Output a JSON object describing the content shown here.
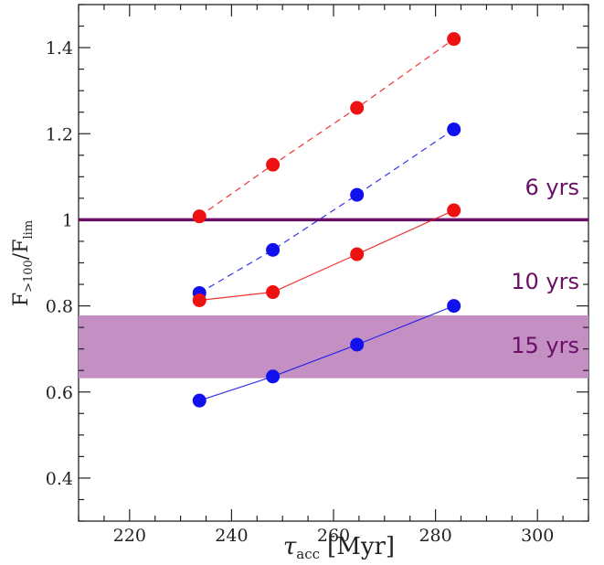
{
  "chart_data": {
    "type": "scatter",
    "xlabel": {
      "symbol": "τ",
      "sub": "acc",
      "unit": "[Myr]"
    },
    "ylabel": {
      "num": "F",
      "num_sub": ">100",
      "den": "F",
      "den_sub": "lim"
    },
    "xlim": [
      210,
      310
    ],
    "ylim": [
      0.3,
      1.5
    ],
    "x_ticks": [
      220,
      240,
      260,
      280,
      300
    ],
    "y_ticks": [
      0.4,
      0.6,
      0.8,
      1,
      1.2,
      1.4
    ],
    "x_tick_labels": [
      "220",
      "240",
      "260",
      "280",
      "300"
    ],
    "y_tick_labels": [
      "0.4",
      "0.6",
      "0.8",
      "1",
      "1.2",
      "1.4"
    ],
    "grid": false,
    "series": [
      {
        "color": "#ee1111",
        "line": "dashed",
        "x": [
          233.7,
          248.1,
          264.6,
          283.6
        ],
        "y": [
          1.008,
          1.128,
          1.26,
          1.42
        ]
      },
      {
        "color": "#1111ee",
        "line": "dashed",
        "x": [
          233.7,
          248.1,
          264.6,
          283.6
        ],
        "y": [
          0.83,
          0.93,
          1.058,
          1.21
        ]
      },
      {
        "color": "#ee1111",
        "line": "solid",
        "x": [
          233.7,
          248.1,
          264.6,
          283.6
        ],
        "y": [
          0.813,
          0.832,
          0.92,
          1.022
        ]
      },
      {
        "color": "#1111ee",
        "line": "solid",
        "x": [
          233.7,
          248.1,
          264.6,
          283.6
        ],
        "y": [
          0.58,
          0.636,
          0.71,
          0.8
        ]
      }
    ],
    "reference_line": {
      "y": 1.0,
      "color": "#6a0f66",
      "label": "6 yrs"
    },
    "band": {
      "y_min": 0.632,
      "y_max": 0.778,
      "color": "#c48fc2",
      "labels": [
        "10 yrs",
        "15 yrs"
      ]
    },
    "annotation_color": "#6a0f66"
  }
}
